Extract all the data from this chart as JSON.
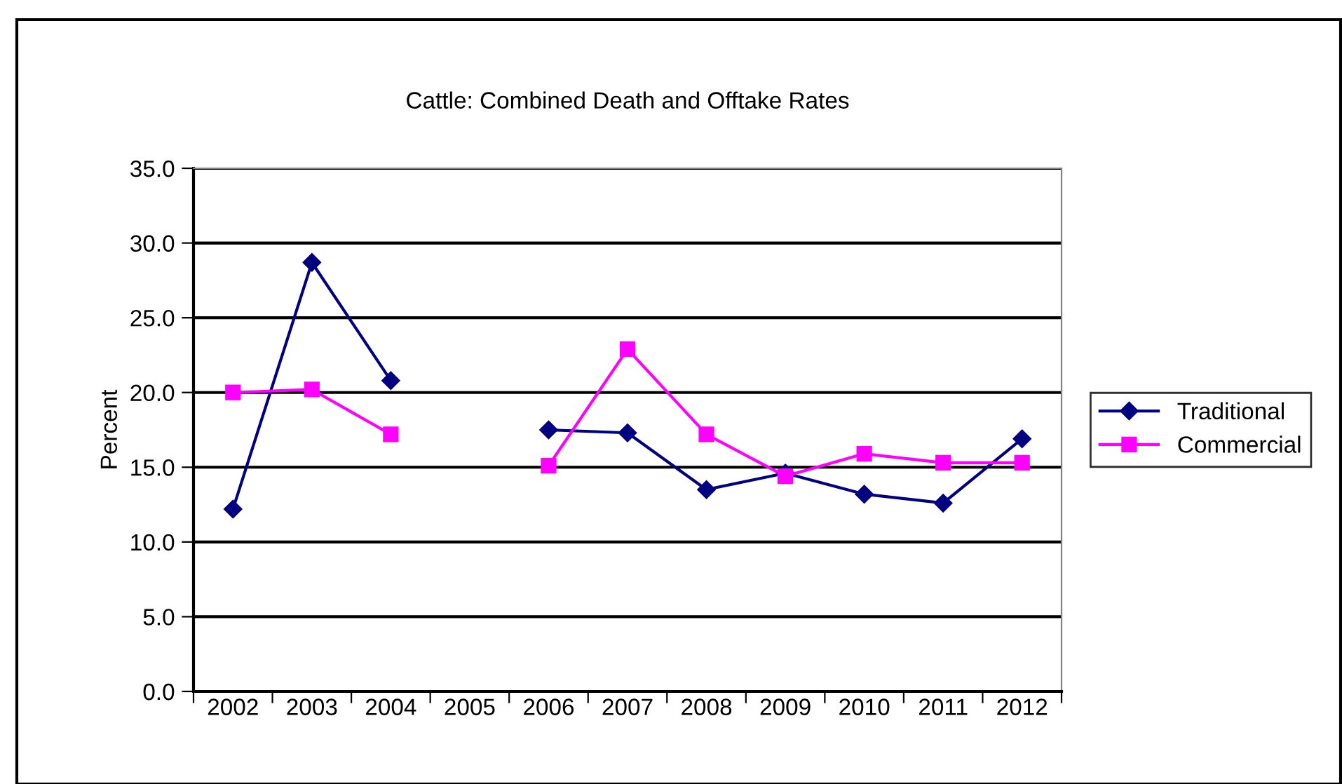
{
  "chart_data": {
    "type": "line",
    "title": "Cattle: Combined Death and Offtake Rates",
    "ylabel": "Percent",
    "categories": [
      "2002",
      "2003",
      "2004",
      "2005",
      "2006",
      "2007",
      "2008",
      "2009",
      "2010",
      "2011",
      "2012"
    ],
    "series": [
      {
        "name": "Traditional",
        "color": "#000080",
        "marker": "diamond",
        "values": [
          12.2,
          28.7,
          20.8,
          null,
          17.5,
          17.3,
          13.5,
          14.6,
          13.2,
          12.6,
          16.9
        ]
      },
      {
        "name": "Commercial",
        "color": "#ff00ff",
        "marker": "square",
        "values": [
          20.0,
          20.2,
          17.2,
          null,
          15.1,
          22.9,
          17.2,
          14.4,
          15.9,
          15.3,
          15.3
        ]
      }
    ],
    "ylim": [
      0,
      35
    ],
    "yticks": [
      {
        "value": 0,
        "label": "0.0"
      },
      {
        "value": 5,
        "label": "5.0"
      },
      {
        "value": 10,
        "label": "10.0"
      },
      {
        "value": 15,
        "label": "15.0"
      },
      {
        "value": 20,
        "label": "20.0"
      },
      {
        "value": 25,
        "label": "25.0"
      },
      {
        "value": 30,
        "label": "30.0"
      },
      {
        "value": 35,
        "label": "35.0"
      }
    ],
    "grid": "y",
    "legend": "right"
  }
}
